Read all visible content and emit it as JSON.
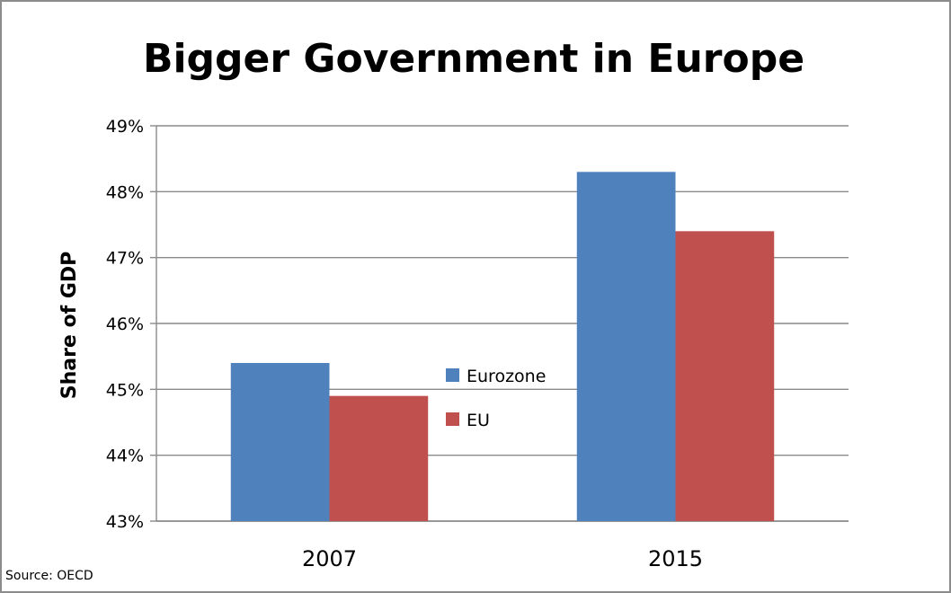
{
  "chart_data": {
    "type": "bar",
    "title": "Bigger Government in Europe",
    "xlabel": "",
    "ylabel": "Share of GDP",
    "categories": [
      "2007",
      "2015"
    ],
    "series": [
      {
        "name": "Eurozone",
        "values": [
          45.4,
          48.3
        ],
        "color": "#4f81bd"
      },
      {
        "name": "EU",
        "values": [
          44.9,
          47.4
        ],
        "color": "#c0504d"
      }
    ],
    "ylim": [
      43,
      49
    ],
    "yticks": [
      43,
      44,
      45,
      46,
      47,
      48,
      49
    ],
    "ytick_labels": [
      "43%",
      "44%",
      "45%",
      "46%",
      "47%",
      "48%",
      "49%"
    ],
    "grid": true,
    "legend_position": "center",
    "source": "Source: OECD"
  }
}
